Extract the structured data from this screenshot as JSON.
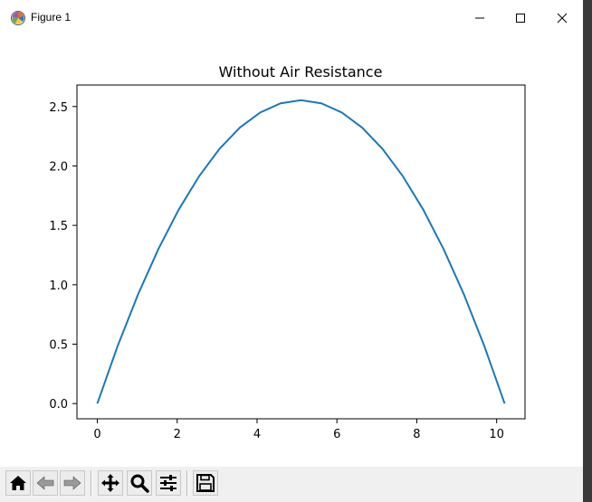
{
  "window": {
    "title": "Figure 1",
    "controls": [
      "minimize",
      "maximize",
      "close"
    ]
  },
  "toolbar": {
    "buttons": [
      {
        "name": "home",
        "icon": "home-icon"
      },
      {
        "name": "back",
        "icon": "back-arrow-icon"
      },
      {
        "name": "forward",
        "icon": "forward-arrow-icon"
      },
      {
        "name": "pan",
        "icon": "move-icon"
      },
      {
        "name": "zoom",
        "icon": "zoom-icon"
      },
      {
        "name": "configure-subplots",
        "icon": "sliders-icon"
      },
      {
        "name": "save",
        "icon": "floppy-disk-icon"
      }
    ]
  },
  "chart_data": {
    "type": "line",
    "title": "Without Air Resistance",
    "xlabel": "",
    "ylabel": "",
    "xlim": [
      -0.51,
      10.71
    ],
    "ylim": [
      -0.128,
      2.681
    ],
    "x_ticks": [
      0,
      2,
      4,
      6,
      8,
      10
    ],
    "x_tick_labels": [
      "0",
      "2",
      "4",
      "6",
      "8",
      "10"
    ],
    "y_ticks": [
      0.0,
      0.5,
      1.0,
      1.5,
      2.0,
      2.5
    ],
    "y_tick_labels": [
      "0.0",
      "0.5",
      "1.0",
      "1.5",
      "2.0",
      "2.5"
    ],
    "grid": false,
    "legend": "none",
    "color": "#1f77b4",
    "series": [
      {
        "x": [
          0,
          0.51,
          1.02,
          1.53,
          2.04,
          2.55,
          3.06,
          3.57,
          4.08,
          4.59,
          5.1,
          5.61,
          6.12,
          6.63,
          7.14,
          7.65,
          8.16,
          8.67,
          9.18,
          9.69,
          10.2
        ],
        "values": [
          0.0,
          0.485,
          0.919,
          1.301,
          1.633,
          1.914,
          2.144,
          2.323,
          2.45,
          2.527,
          2.553,
          2.527,
          2.45,
          2.323,
          2.144,
          1.914,
          1.633,
          1.301,
          0.919,
          0.485,
          0.0
        ]
      }
    ]
  }
}
